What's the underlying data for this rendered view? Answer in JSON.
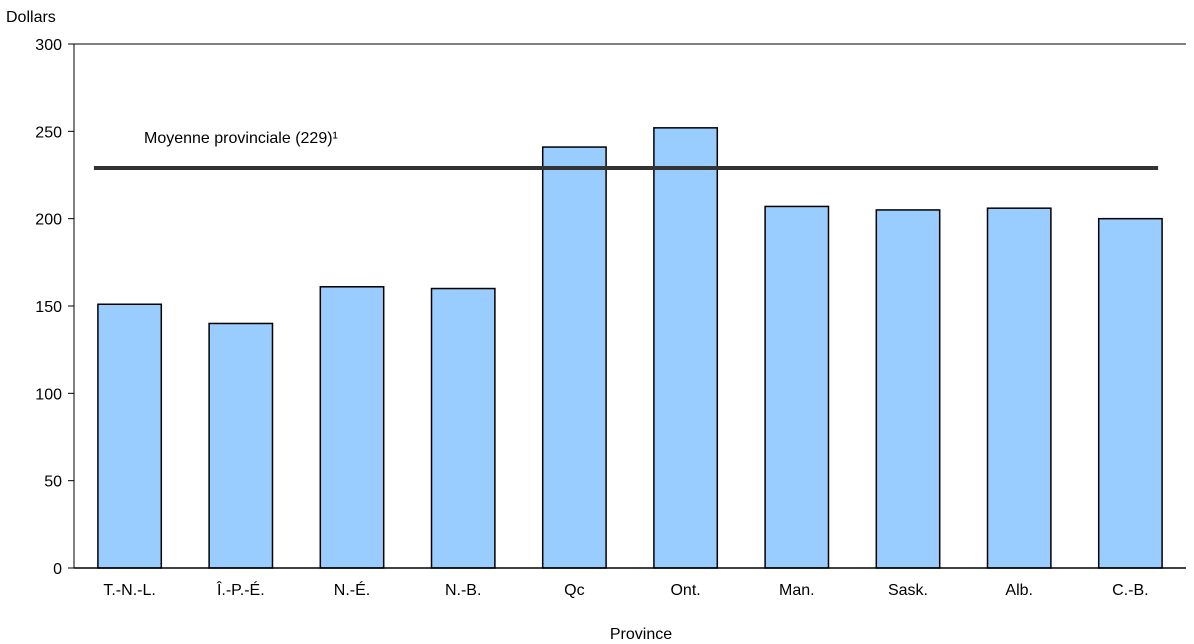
{
  "chart_data": {
    "type": "bar",
    "title": "",
    "ylabel": "Dollars",
    "xlabel": "Province",
    "ylim": [
      0,
      300
    ],
    "yticks": [
      0,
      50,
      100,
      150,
      200,
      250,
      300
    ],
    "categories": [
      "T.-N.-L.",
      "Î.-P.-É.",
      "N.-É.",
      "N.-B.",
      "Qc",
      "Ont.",
      "Man.",
      "Sask.",
      "Alb.",
      "C.-B."
    ],
    "values": [
      151,
      140,
      161,
      160,
      241,
      252,
      207,
      205,
      206,
      200
    ],
    "bar_color": "#99ccff",
    "bar_edge_color": "#000000",
    "reference_line": {
      "label": "Moyenne provinciale (229)¹",
      "value": 229,
      "color": "#333333"
    },
    "grid": false,
    "legend": "none"
  }
}
